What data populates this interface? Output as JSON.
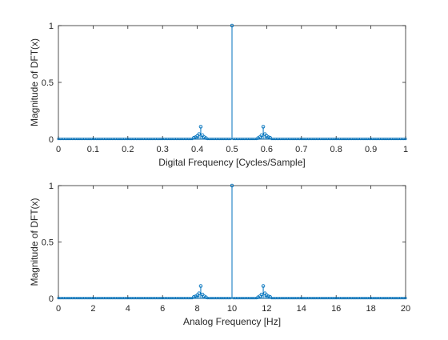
{
  "chart_data": [
    {
      "type": "stem",
      "xlabel": "Digital Frequency [Cycles/Sample]",
      "ylabel": "Magnitude of DFT(x)",
      "xlim": [
        0,
        1
      ],
      "ylim": [
        0,
        1
      ],
      "xticks": [
        0,
        0.1,
        0.2,
        0.3,
        0.4,
        0.5,
        0.6,
        0.7,
        0.8,
        0.9,
        1
      ],
      "xtick_labels": [
        "0",
        "0.1",
        "0.2",
        "0.3",
        "0.4",
        "0.5",
        "0.6",
        "0.7",
        "0.8",
        "0.9",
        "1"
      ],
      "yticks": [
        0,
        0.5,
        1
      ],
      "ytick_labels": [
        "0",
        "0.5",
        "1"
      ],
      "grid": false,
      "series": [
        {
          "color": "#0072BD",
          "points": [
            {
              "x": 0.39,
              "y": 0.012
            },
            {
              "x": 0.395,
              "y": 0.018
            },
            {
              "x": 0.4,
              "y": 0.028
            },
            {
              "x": 0.405,
              "y": 0.045
            },
            {
              "x": 0.41,
              "y": 0.11
            },
            {
              "x": 0.415,
              "y": 0.035
            },
            {
              "x": 0.42,
              "y": 0.018
            },
            {
              "x": 0.425,
              "y": 0.01
            },
            {
              "x": 0.5,
              "y": 1.0
            },
            {
              "x": 0.575,
              "y": 0.01
            },
            {
              "x": 0.58,
              "y": 0.018
            },
            {
              "x": 0.585,
              "y": 0.035
            },
            {
              "x": 0.59,
              "y": 0.11
            },
            {
              "x": 0.595,
              "y": 0.045
            },
            {
              "x": 0.6,
              "y": 0.028
            },
            {
              "x": 0.605,
              "y": 0.018
            },
            {
              "x": 0.61,
              "y": 0.012
            }
          ],
          "baseline_step": 0.005,
          "baseline_value": 0.003
        }
      ]
    },
    {
      "type": "stem",
      "xlabel": "Analog Frequency [Hz]",
      "ylabel": "Magnitude of DFT(x)",
      "xlim": [
        0,
        20
      ],
      "ylim": [
        0,
        1
      ],
      "xticks": [
        0,
        2,
        4,
        6,
        8,
        10,
        12,
        14,
        16,
        18,
        20
      ],
      "xtick_labels": [
        "0",
        "2",
        "4",
        "6",
        "8",
        "10",
        "12",
        "14",
        "16",
        "18",
        "20"
      ],
      "yticks": [
        0,
        0.5,
        1
      ],
      "ytick_labels": [
        "0",
        "0.5",
        "1"
      ],
      "grid": false,
      "series": [
        {
          "color": "#0072BD",
          "points": [
            {
              "x": 7.8,
              "y": 0.012
            },
            {
              "x": 7.9,
              "y": 0.018
            },
            {
              "x": 8.0,
              "y": 0.028
            },
            {
              "x": 8.1,
              "y": 0.045
            },
            {
              "x": 8.2,
              "y": 0.11
            },
            {
              "x": 8.3,
              "y": 0.035
            },
            {
              "x": 8.4,
              "y": 0.018
            },
            {
              "x": 8.5,
              "y": 0.01
            },
            {
              "x": 10.0,
              "y": 1.0
            },
            {
              "x": 11.5,
              "y": 0.01
            },
            {
              "x": 11.6,
              "y": 0.018
            },
            {
              "x": 11.7,
              "y": 0.035
            },
            {
              "x": 11.8,
              "y": 0.11
            },
            {
              "x": 11.9,
              "y": 0.045
            },
            {
              "x": 12.0,
              "y": 0.028
            },
            {
              "x": 12.1,
              "y": 0.018
            },
            {
              "x": 12.2,
              "y": 0.012
            }
          ],
          "baseline_step": 0.1,
          "baseline_value": 0.003
        }
      ]
    }
  ]
}
